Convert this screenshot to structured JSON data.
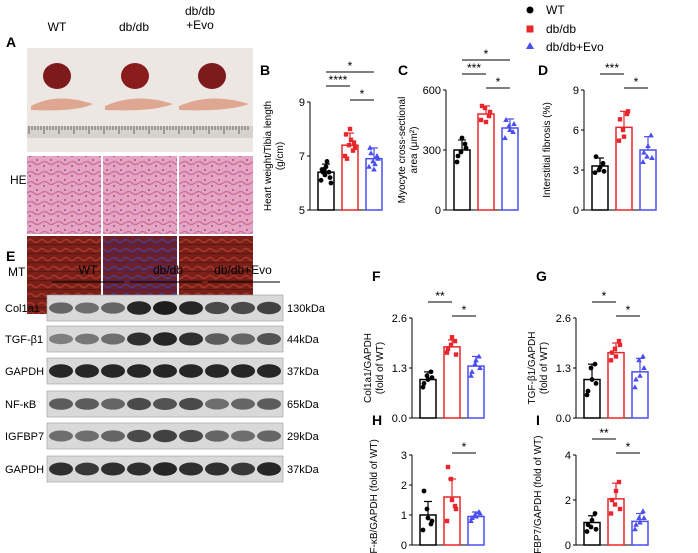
{
  "legend": [
    {
      "label": "WT",
      "color": "#000000",
      "marker": "circle"
    },
    {
      "label": "db/db",
      "color": "#e8262b",
      "marker": "square"
    },
    {
      "label": "db/db+Evo",
      "color": "#4a4ef0",
      "marker": "triangle"
    }
  ],
  "panel_a": {
    "letter": "A",
    "columns": [
      "WT",
      "db/db",
      "db/db\n+Evo"
    ],
    "rows": [
      "HE",
      "MT"
    ]
  },
  "panel_e": {
    "letter": "E",
    "groups": [
      "WT",
      "db/db",
      "db/db+Evo"
    ],
    "blots": [
      {
        "name": "Col1a1",
        "kda": "130kDa"
      },
      {
        "name": "TGF-β1",
        "kda": "44kDa"
      },
      {
        "name": "GAPDH",
        "kda": "37kDa"
      },
      {
        "name": "NF-κB",
        "kda": "65kDa"
      },
      {
        "name": "IGFBP7",
        "kda": "29kDa"
      },
      {
        "name": "GAPDH",
        "kda": "37kDa"
      }
    ]
  },
  "chart_data": [
    {
      "id": "B",
      "type": "bar",
      "categories": [
        "WT",
        "db/db",
        "db/db+Evo"
      ],
      "ylabel": "Heart weight/Tibia length\n(g/cm)",
      "ylim": [
        5,
        9
      ],
      "yticks": [
        5,
        7,
        9
      ],
      "values": [
        6.4,
        7.4,
        6.9
      ],
      "errors": [
        0.3,
        0.45,
        0.4
      ],
      "points": [
        [
          6.1,
          6.3,
          6.4,
          6.5,
          6.6,
          6.2,
          6.4,
          6.8,
          6.0,
          6.5
        ],
        [
          7.0,
          7.4,
          7.2,
          7.8,
          8.0,
          7.5,
          6.9,
          7.6,
          7.3
        ],
        [
          6.6,
          6.8,
          7.0,
          7.3,
          6.5,
          6.9,
          7.1,
          6.7
        ]
      ],
      "sig": [
        {
          "from": 0,
          "to": 1,
          "label": "****",
          "level": 1
        },
        {
          "from": 0,
          "to": 2,
          "label": "*",
          "level": 2
        },
        {
          "from": 1,
          "to": 2,
          "label": "*",
          "level": 0
        }
      ]
    },
    {
      "id": "C",
      "type": "bar",
      "categories": [
        "WT",
        "db/db",
        "db/db+Evo"
      ],
      "ylabel": "Myocyte cross-sectional\narea (μm²)",
      "ylim": [
        0,
        600
      ],
      "yticks": [
        0,
        300,
        600
      ],
      "values": [
        300,
        480,
        410
      ],
      "errors": [
        50,
        40,
        45
      ],
      "points": [
        [
          240,
          290,
          330,
          270,
          360,
          310
        ],
        [
          450,
          510,
          470,
          520,
          440,
          490
        ],
        [
          360,
          420,
          390,
          450,
          400,
          430
        ]
      ],
      "sig": [
        {
          "from": 0,
          "to": 1,
          "label": "***",
          "level": 1
        },
        {
          "from": 0,
          "to": 2,
          "label": "*",
          "level": 2
        },
        {
          "from": 1,
          "to": 2,
          "label": "*",
          "level": 0
        }
      ]
    },
    {
      "id": "D",
      "type": "bar",
      "categories": [
        "WT",
        "db/db",
        "db/db+Evo"
      ],
      "ylabel": "Interstitial fibrosis (%)",
      "ylim": [
        0,
        9
      ],
      "yticks": [
        0,
        3,
        6,
        9
      ],
      "values": [
        3.3,
        6.2,
        4.5
      ],
      "errors": [
        0.6,
        1.2,
        1.0
      ],
      "points": [
        [
          2.8,
          3.0,
          3.5,
          4.0,
          3.2,
          2.9
        ],
        [
          5.2,
          6.0,
          7.2,
          6.8,
          5.5,
          7.4
        ],
        [
          3.6,
          4.0,
          5.6,
          4.3,
          4.8,
          3.9
        ]
      ],
      "sig": [
        {
          "from": 0,
          "to": 1,
          "label": "***",
          "level": 1
        },
        {
          "from": 1,
          "to": 2,
          "label": "*",
          "level": 0
        }
      ]
    },
    {
      "id": "F",
      "type": "bar",
      "categories": [
        "WT",
        "db/db",
        "db/db+Evo"
      ],
      "ylabel": "Col1a1/GAPDH\n(fold of WT)",
      "ylim": [
        0,
        2.6
      ],
      "yticks": [
        0.0,
        1.3,
        2.6
      ],
      "values": [
        1.0,
        1.85,
        1.35
      ],
      "errors": [
        0.2,
        0.18,
        0.25
      ],
      "points": [
        [
          0.8,
          1.1,
          1.2,
          0.9,
          1.0,
          1.05
        ],
        [
          1.7,
          1.9,
          2.0,
          1.8,
          2.1,
          1.65
        ],
        [
          1.1,
          1.4,
          1.6,
          1.2,
          1.5,
          1.3
        ]
      ],
      "sig": [
        {
          "from": 0,
          "to": 1,
          "label": "**",
          "level": 1
        },
        {
          "from": 1,
          "to": 2,
          "label": "*",
          "level": 0
        }
      ]
    },
    {
      "id": "G",
      "type": "bar",
      "categories": [
        "WT",
        "db/db",
        "db/db+Evo"
      ],
      "ylabel": "TGF-β1/GAPDH\n(fold of WT)",
      "ylim": [
        0,
        2.6
      ],
      "yticks": [
        0.0,
        1.3,
        2.6
      ],
      "values": [
        1.0,
        1.7,
        1.2
      ],
      "errors": [
        0.4,
        0.25,
        0.35
      ],
      "points": [
        [
          0.6,
          1.3,
          1.4,
          0.7,
          1.0,
          0.9
        ],
        [
          1.5,
          1.8,
          2.0,
          1.7,
          1.6,
          1.9
        ],
        [
          0.8,
          1.5,
          1.6,
          1.0,
          1.1,
          1.3
        ]
      ],
      "sig": [
        {
          "from": 0,
          "to": 1,
          "label": "*",
          "level": 1
        },
        {
          "from": 1,
          "to": 2,
          "label": "*",
          "level": 0
        }
      ]
    },
    {
      "id": "H",
      "type": "bar",
      "categories": [
        "WT",
        "db/db",
        "db/db+Evo"
      ],
      "ylabel": "NF-κB/GAPDH (fold of WT)",
      "ylim": [
        0,
        3
      ],
      "yticks": [
        0,
        1,
        2,
        3
      ],
      "values": [
        1.0,
        1.6,
        0.95
      ],
      "errors": [
        0.45,
        0.6,
        0.15
      ],
      "points": [
        [
          0.5,
          1.2,
          0.7,
          1.8,
          0.9,
          0.8
        ],
        [
          0.8,
          2.2,
          1.3,
          2.6,
          1.5,
          1.2
        ],
        [
          0.8,
          1.0,
          1.1,
          0.9,
          0.95,
          1.05
        ]
      ],
      "sig": [
        {
          "from": 1,
          "to": 2,
          "label": "*",
          "level": 0
        }
      ]
    },
    {
      "id": "I",
      "type": "bar",
      "categories": [
        "WT",
        "db/db",
        "db/db+Evo"
      ],
      "ylabel": "IGFBP7/GAPDH (fold of WT)",
      "ylim": [
        0,
        4
      ],
      "yticks": [
        0,
        2,
        4
      ],
      "values": [
        1.0,
        2.05,
        1.05
      ],
      "errors": [
        0.3,
        0.7,
        0.35
      ],
      "points": [
        [
          0.6,
          0.8,
          1.4,
          0.9,
          1.1,
          0.7
        ],
        [
          1.4,
          1.8,
          2.8,
          2.0,
          2.4,
          1.6
        ],
        [
          0.7,
          1.2,
          1.5,
          0.9,
          1.0,
          1.2
        ]
      ],
      "sig": [
        {
          "from": 0,
          "to": 1,
          "label": "**",
          "level": 1
        },
        {
          "from": 1,
          "to": 2,
          "label": "*",
          "level": 0
        }
      ]
    }
  ]
}
